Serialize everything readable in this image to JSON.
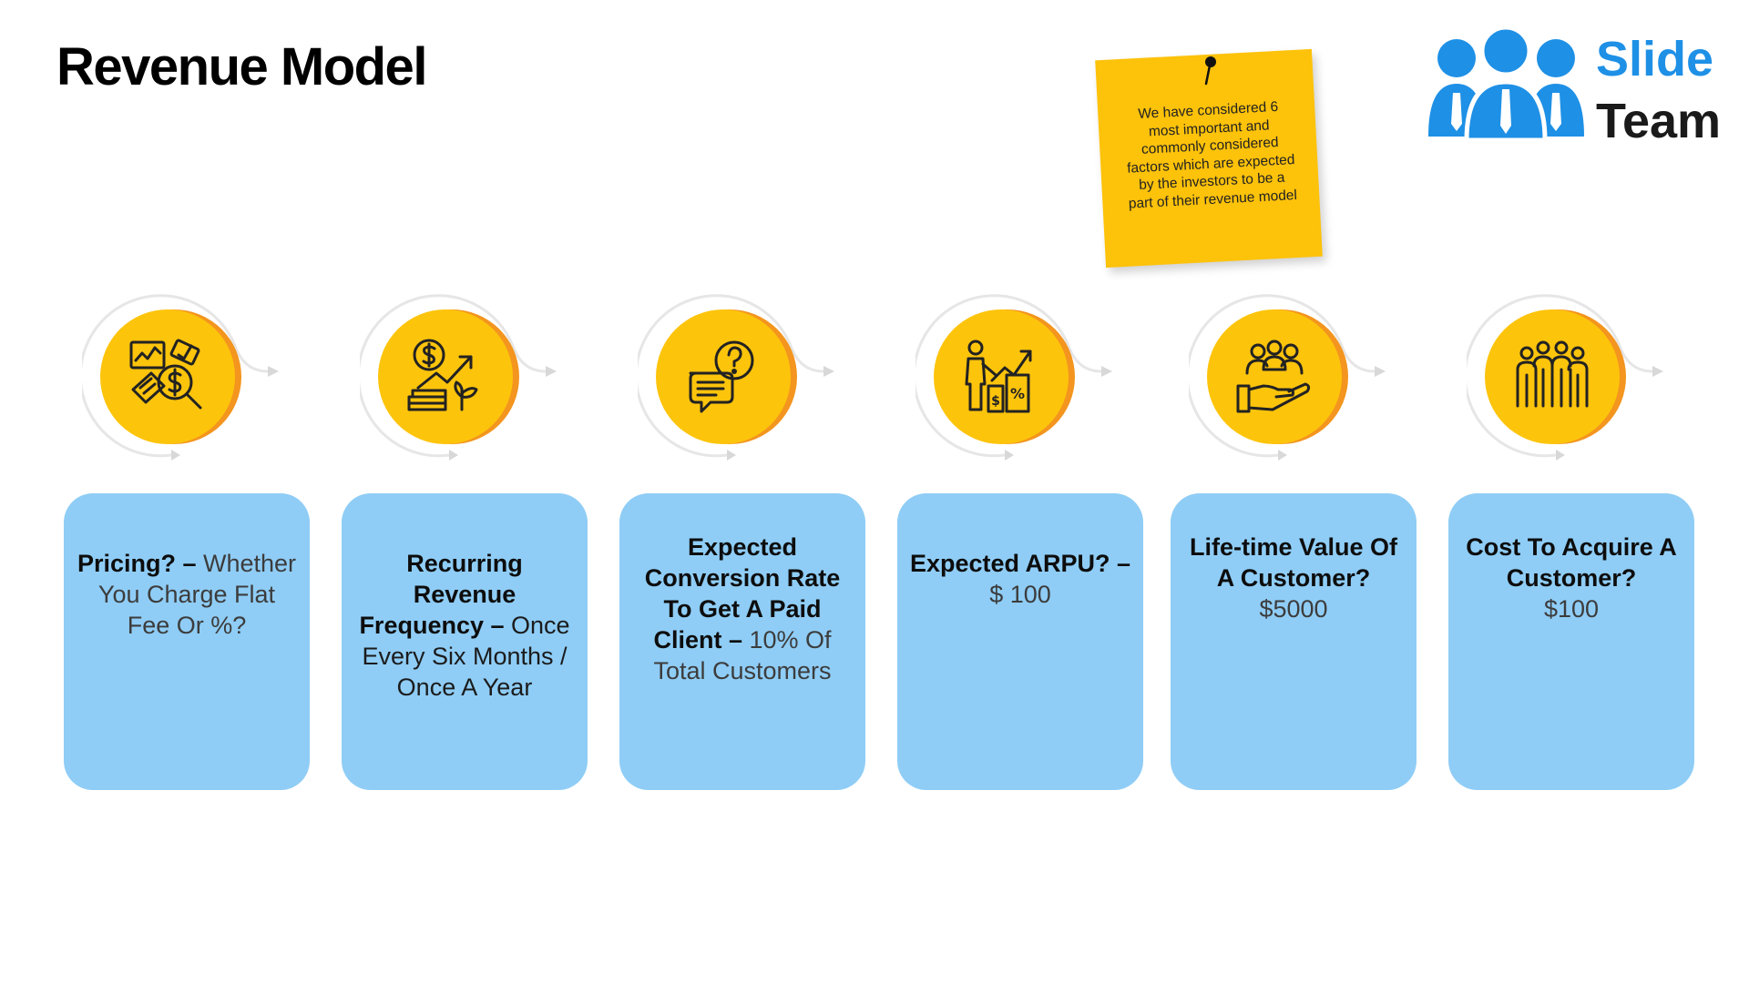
{
  "slide": {
    "title": "Revenue Model"
  },
  "logo": {
    "line1": "Slide",
    "line2": "Team"
  },
  "note": {
    "text": "We have considered 6 most important and commonly considered factors which are expected by the investors to be a part of their revenue model"
  },
  "colors": {
    "circle": "#fdc40c",
    "circle_shadow": "#f3951e",
    "card": "#8fcdf6",
    "note": "#fdc20a",
    "logo_blue": "#1e90e6"
  },
  "steps": [
    {
      "icon": "money-analysis-icon",
      "bold": "Pricing? –",
      "rest": "Whether You Charge Flat Fee Or %?"
    },
    {
      "icon": "revenue-growth-icon",
      "bold": "Recurring Revenue Frequency –",
      "rest": "Once Every Six Months / Once A Year"
    },
    {
      "icon": "chat-question-icon",
      "bold": "Expected Conversion Rate To Get A Paid Client –",
      "rest": "10% Of Total Customers"
    },
    {
      "icon": "presentation-chart-icon",
      "bold": "Expected ARPU? –",
      "rest": "$ 100"
    },
    {
      "icon": "customer-hand-icon",
      "bold": "Life-time Value Of A Customer?",
      "rest": "$5000"
    },
    {
      "icon": "team-group-icon",
      "bold": "Cost To Acquire A Customer?",
      "rest": "$100"
    }
  ]
}
